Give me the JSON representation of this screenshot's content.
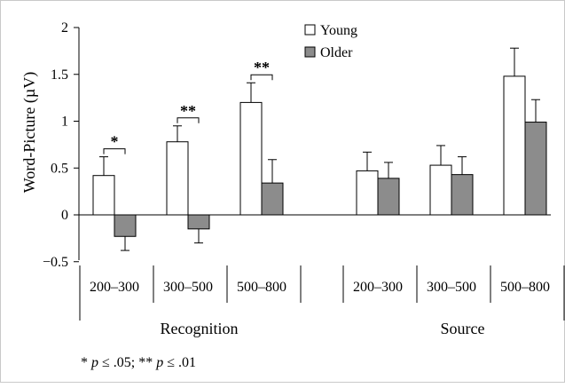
{
  "chart_data": {
    "type": "bar",
    "ylabel": "Word-Picture (µV)",
    "ylim": [
      -0.5,
      2
    ],
    "yticks": [
      "2",
      "1.5",
      "1",
      "0.5",
      "0",
      "−0.5"
    ],
    "ytick_values": [
      2,
      1.5,
      1,
      0.5,
      0,
      -0.5
    ],
    "legend_position": "top-center",
    "colors": {
      "Young": "#ffffff",
      "Older": "#8c8c8c"
    },
    "groups": [
      {
        "name": "Recognition",
        "categories": [
          "200–300",
          "300–500",
          "500–800"
        ],
        "series": [
          {
            "name": "Young",
            "values": [
              0.42,
              0.78,
              1.2
            ],
            "errors": [
              0.2,
              0.17,
              0.21
            ]
          },
          {
            "name": "Older",
            "values": [
              -0.23,
              -0.15,
              0.34
            ],
            "errors": [
              0.15,
              0.15,
              0.25
            ]
          }
        ],
        "significance": [
          "*",
          "**",
          "**"
        ]
      },
      {
        "name": "Source",
        "categories": [
          "200–300",
          "300–500",
          "500–800"
        ],
        "series": [
          {
            "name": "Young",
            "values": [
              0.47,
              0.53,
              1.48
            ],
            "errors": [
              0.2,
              0.21,
              0.3
            ]
          },
          {
            "name": "Older",
            "values": [
              0.39,
              0.43,
              0.99
            ],
            "errors": [
              0.17,
              0.19,
              0.24
            ]
          }
        ],
        "significance": [
          "",
          "",
          ""
        ]
      }
    ]
  },
  "legend": {
    "young": "Young",
    "older": "Older"
  },
  "footnote": {
    "star1": "* ",
    "p1": "p",
    "val1": " ≤ .05; ** ",
    "p2": "p",
    "val2": " ≤ .01"
  }
}
